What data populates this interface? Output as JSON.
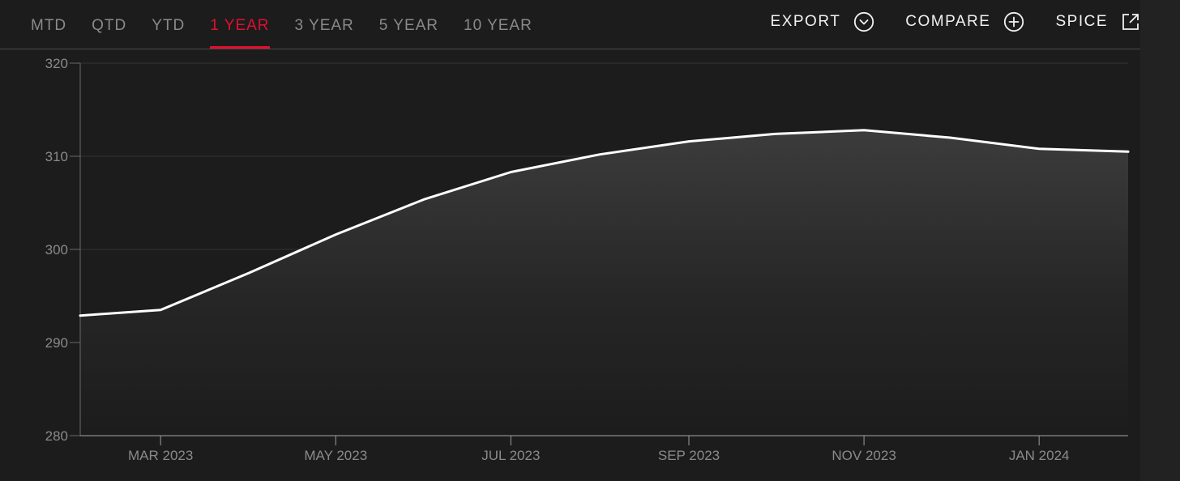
{
  "toolbar": {
    "tabs": [
      {
        "label": "MTD",
        "active": false
      },
      {
        "label": "QTD",
        "active": false
      },
      {
        "label": "YTD",
        "active": false
      },
      {
        "label": "1 YEAR",
        "active": true
      },
      {
        "label": "3 YEAR",
        "active": false
      },
      {
        "label": "5 YEAR",
        "active": false
      },
      {
        "label": "10 YEAR",
        "active": false
      }
    ],
    "actions": {
      "export_label": "EXPORT",
      "compare_label": "COMPARE",
      "spice_label": "SPICE"
    },
    "icons": {
      "export": "chevron-down-circle-icon",
      "compare": "plus-circle-icon",
      "spice": "external-link-icon"
    }
  },
  "colors": {
    "background": "#1c1c1c",
    "accent": "#e0102e",
    "line": "#ffffff",
    "muted_text": "#8a8a8a"
  },
  "chart_data": {
    "type": "area",
    "title": "",
    "xlabel": "",
    "ylabel": "",
    "ylim": [
      280,
      320
    ],
    "yticks": [
      280,
      290,
      300,
      310,
      320
    ],
    "xlim": [
      "2023-02-01",
      "2024-02-01"
    ],
    "xticks": [
      {
        "date": "2023-03-01",
        "label": "MAR 2023"
      },
      {
        "date": "2023-05-01",
        "label": "MAY 2023"
      },
      {
        "date": "2023-07-01",
        "label": "JUL 2023"
      },
      {
        "date": "2023-09-01",
        "label": "SEP 2023"
      },
      {
        "date": "2023-11-01",
        "label": "NOV 2023"
      },
      {
        "date": "2024-01-01",
        "label": "JAN 2024"
      }
    ],
    "grid": true,
    "legend": "none",
    "series": [
      {
        "x": [
          "2023-02-01",
          "2023-03-01",
          "2023-04-01",
          "2023-05-01",
          "2023-06-01",
          "2023-07-01",
          "2023-08-01",
          "2023-09-01",
          "2023-10-01",
          "2023-11-01",
          "2023-12-01",
          "2024-01-01",
          "2024-02-01"
        ],
        "values": [
          292.9,
          293.5,
          297.5,
          301.6,
          305.4,
          308.3,
          310.2,
          311.6,
          312.4,
          312.8,
          312.0,
          310.8,
          310.5
        ]
      }
    ]
  }
}
